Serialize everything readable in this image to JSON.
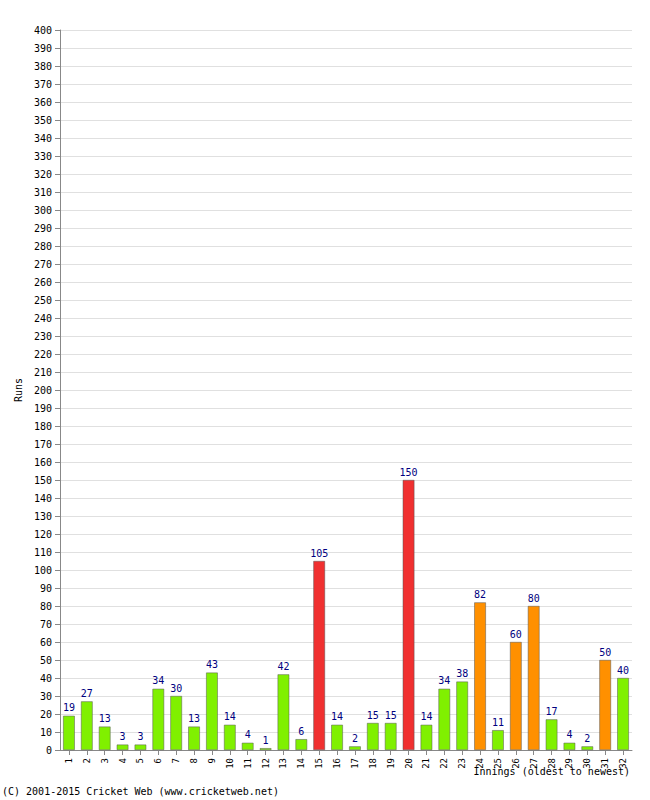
{
  "chart_data": {
    "type": "bar",
    "ylabel": "Runs",
    "xlabel": "Innings (oldest to newest)",
    "annotation": "(C) 2001-2015 Cricket Web (www.cricketweb.net)",
    "categories": [
      "1",
      "2",
      "3",
      "4",
      "5",
      "6",
      "7",
      "8",
      "9",
      "10",
      "11",
      "12",
      "13",
      "14",
      "15",
      "16",
      "17",
      "18",
      "19",
      "20",
      "21",
      "22",
      "23",
      "24",
      "25",
      "26",
      "27",
      "28",
      "29",
      "30",
      "31",
      "32"
    ],
    "values": [
      19,
      27,
      13,
      3,
      3,
      34,
      30,
      13,
      43,
      14,
      4,
      1,
      42,
      6,
      105,
      14,
      2,
      15,
      15,
      150,
      14,
      34,
      38,
      82,
      11,
      60,
      80,
      17,
      4,
      2,
      50,
      40
    ],
    "colors": [
      "#80f000",
      "#80f000",
      "#80f000",
      "#80f000",
      "#80f000",
      "#80f000",
      "#80f000",
      "#80f000",
      "#80f000",
      "#80f000",
      "#80f000",
      "#80f000",
      "#80f000",
      "#80f000",
      "#f03030",
      "#80f000",
      "#80f000",
      "#80f000",
      "#80f000",
      "#f03030",
      "#80f000",
      "#80f000",
      "#80f000",
      "#ff9000",
      "#80f000",
      "#ff9000",
      "#ff9000",
      "#80f000",
      "#80f000",
      "#80f000",
      "#ff9000",
      "#80f000"
    ],
    "ylim": [
      0,
      400
    ],
    "yticks": [
      0,
      10,
      20,
      30,
      40,
      50,
      60,
      70,
      80,
      90,
      100,
      110,
      120,
      130,
      140,
      150,
      160,
      170,
      180,
      190,
      200,
      210,
      220,
      230,
      240,
      250,
      260,
      270,
      280,
      290,
      300,
      310,
      320,
      330,
      340,
      350,
      360,
      370,
      380,
      390,
      400
    ],
    "grid": true,
    "data_labels": true
  }
}
